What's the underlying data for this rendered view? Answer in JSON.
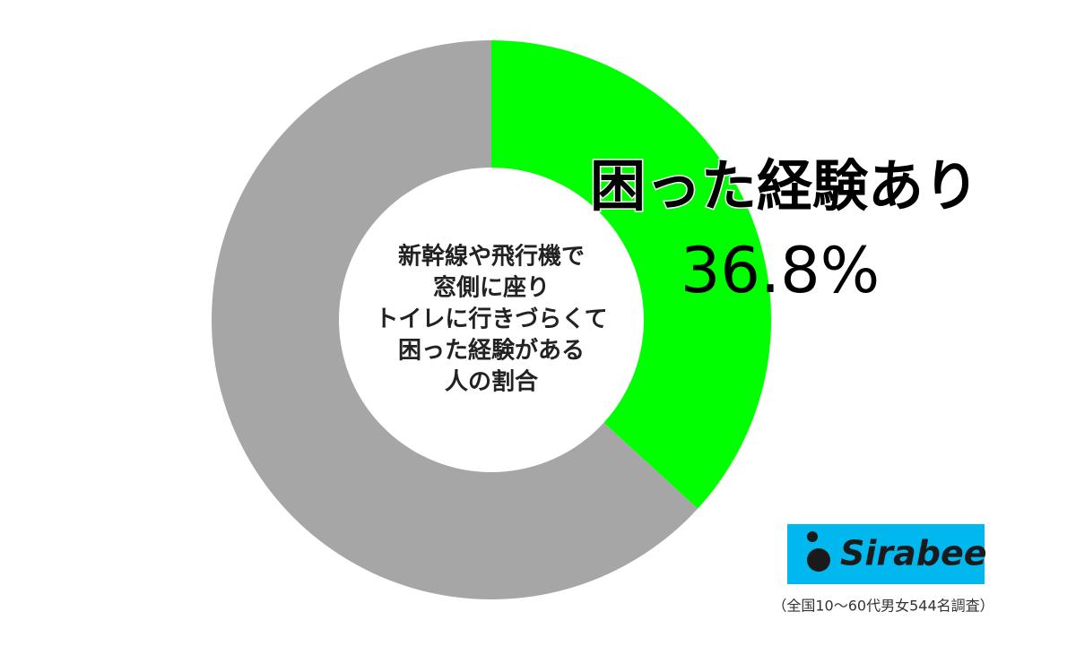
{
  "chart_data": {
    "type": "donut",
    "categories": [
      "困った経験あり",
      null
    ],
    "values": [
      36.8,
      63.2
    ],
    "value_labels": [
      "36.8%",
      null
    ],
    "colors": [
      "#00ff00",
      "#a6a6a6"
    ],
    "center_text": [
      "新幹線や飛行機で",
      "窓側に座り",
      "トイレに行きづらくて",
      "困った経験がある",
      "人の割合"
    ],
    "logo": "Sirabee",
    "note": "（全国10〜60代男女544名調査）"
  }
}
